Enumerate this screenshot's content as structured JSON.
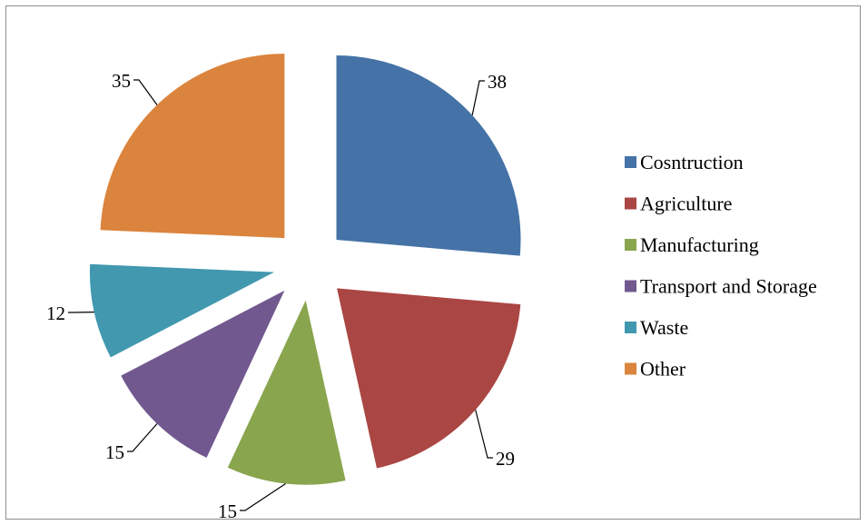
{
  "chart_data": {
    "type": "pie",
    "exploded": true,
    "start": "top, clockwise",
    "categories": [
      "Cosntruction",
      "Agriculture",
      "Manufacturing",
      "Transport and Storage",
      "Waste",
      "Other"
    ],
    "values": [
      38,
      29,
      15,
      15,
      12,
      35
    ],
    "data_labels": [
      "38",
      "29",
      "15",
      "15",
      "12",
      "35"
    ],
    "colors": [
      "#4572a7",
      "#aa4643",
      "#89a54e",
      "#71588f",
      "#4198af",
      "#db843d"
    ],
    "legend": "right",
    "title": "",
    "border": true
  }
}
